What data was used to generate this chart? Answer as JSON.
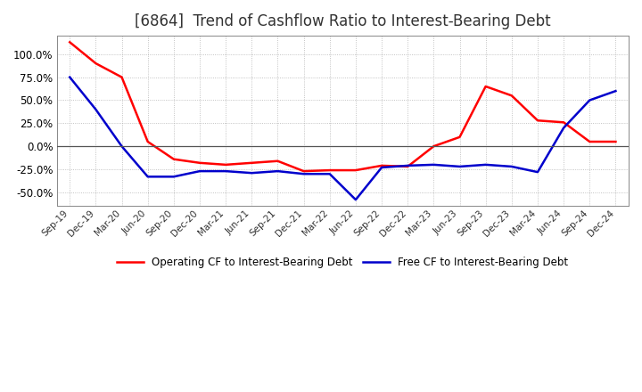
{
  "title": "[6864]  Trend of Cashflow Ratio to Interest-Bearing Debt",
  "x_labels": [
    "Sep-19",
    "Dec-19",
    "Mar-20",
    "Jun-20",
    "Sep-20",
    "Dec-20",
    "Mar-21",
    "Jun-21",
    "Sep-21",
    "Dec-21",
    "Mar-22",
    "Jun-22",
    "Sep-22",
    "Dec-22",
    "Mar-23",
    "Jun-23",
    "Sep-23",
    "Dec-23",
    "Mar-24",
    "Jun-24",
    "Sep-24",
    "Dec-24"
  ],
  "operating_cf": [
    1.13,
    0.9,
    0.75,
    0.05,
    -0.14,
    -0.18,
    -0.2,
    -0.18,
    -0.16,
    -0.27,
    -0.26,
    -0.26,
    -0.21,
    -0.22,
    0.0,
    0.1,
    0.65,
    0.55,
    0.28,
    0.26,
    0.05,
    0.05
  ],
  "free_cf": [
    0.75,
    0.4,
    0.0,
    -0.33,
    -0.33,
    -0.27,
    -0.27,
    -0.29,
    -0.27,
    -0.3,
    -0.3,
    -0.58,
    -0.23,
    -0.21,
    -0.2,
    -0.22,
    -0.2,
    -0.22,
    -0.28,
    0.2,
    0.5,
    0.6
  ],
  "ylim": [
    -0.65,
    1.2
  ],
  "yticks": [
    -0.5,
    -0.25,
    0.0,
    0.25,
    0.5,
    0.75,
    1.0
  ],
  "operating_color": "#ff0000",
  "free_color": "#0000cc",
  "background_color": "#ffffff",
  "grid_color": "#aaaaaa",
  "title_fontsize": 12,
  "legend_operating": "Operating CF to Interest-Bearing Debt",
  "legend_free": "Free CF to Interest-Bearing Debt"
}
